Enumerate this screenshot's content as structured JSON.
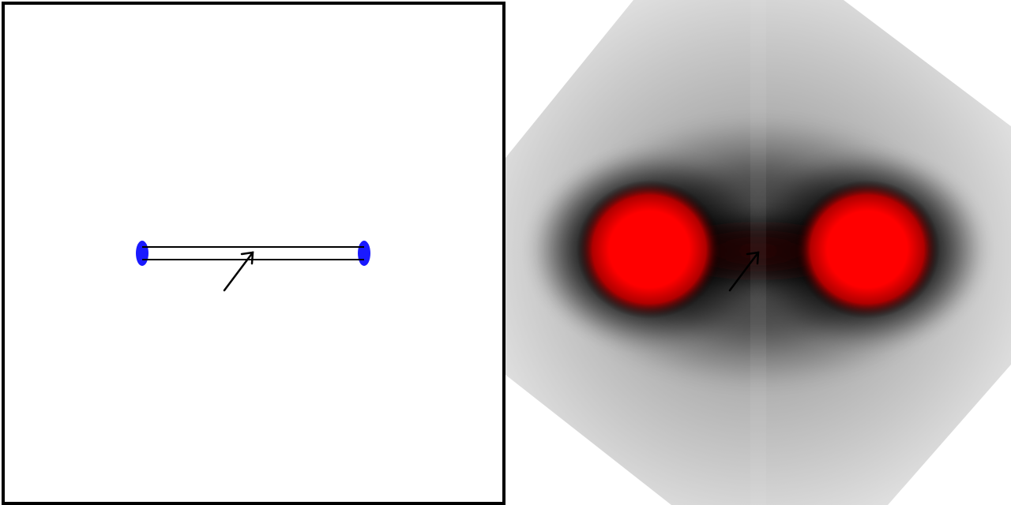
{
  "scene": {
    "colors": {
      "background": "#ffffff",
      "frame": "#000000",
      "electrode": "#1a1aff",
      "wire_outline": "#000000",
      "wire_fill": "#ffffff",
      "arrow": "#000000",
      "field_hot": "#ff0000",
      "field_core": "#000000",
      "field_outer": "#e6e6e6"
    },
    "icons": {
      "left_electrode": "blue-electrode-icon",
      "right_electrode": "blue-electrode-icon",
      "cursor_arrow": "arrow-icon"
    }
  }
}
